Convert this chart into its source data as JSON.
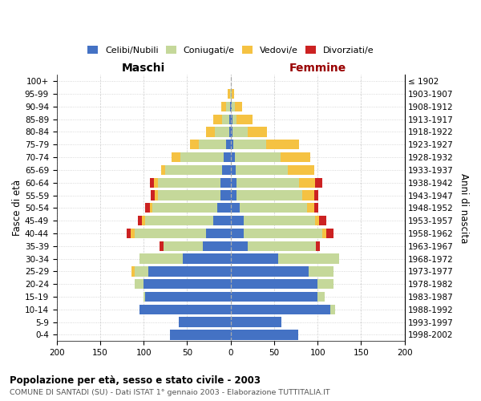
{
  "age_groups": [
    "0-4",
    "5-9",
    "10-14",
    "15-19",
    "20-24",
    "25-29",
    "30-34",
    "35-39",
    "40-44",
    "45-49",
    "50-54",
    "55-59",
    "60-64",
    "65-69",
    "70-74",
    "75-79",
    "80-84",
    "85-89",
    "90-94",
    "95-99",
    "100+"
  ],
  "birth_years": [
    "1998-2002",
    "1993-1997",
    "1988-1992",
    "1983-1987",
    "1978-1982",
    "1973-1977",
    "1968-1972",
    "1963-1967",
    "1958-1962",
    "1953-1957",
    "1948-1952",
    "1943-1947",
    "1938-1942",
    "1933-1937",
    "1928-1932",
    "1923-1927",
    "1918-1922",
    "1913-1917",
    "1908-1912",
    "1903-1907",
    "≤ 1902"
  ],
  "males_celibi": [
    70,
    60,
    105,
    98,
    100,
    95,
    55,
    32,
    28,
    20,
    15,
    12,
    12,
    10,
    8,
    5,
    2,
    2,
    1,
    0,
    0
  ],
  "males_coniugati": [
    0,
    0,
    0,
    2,
    10,
    15,
    50,
    45,
    82,
    78,
    75,
    72,
    72,
    65,
    50,
    32,
    16,
    8,
    4,
    1,
    0
  ],
  "males_vedovi": [
    0,
    0,
    0,
    0,
    0,
    4,
    0,
    0,
    5,
    4,
    3,
    3,
    4,
    5,
    10,
    10,
    10,
    10,
    6,
    2,
    0
  ],
  "males_divorziati": [
    0,
    0,
    0,
    0,
    0,
    0,
    0,
    5,
    5,
    5,
    5,
    5,
    5,
    0,
    0,
    0,
    0,
    0,
    0,
    0,
    0
  ],
  "females_nubili": [
    78,
    58,
    115,
    100,
    100,
    90,
    55,
    20,
    15,
    15,
    10,
    7,
    7,
    6,
    5,
    3,
    2,
    2,
    1,
    0,
    0
  ],
  "females_coniugate": [
    0,
    0,
    5,
    8,
    18,
    28,
    70,
    78,
    90,
    82,
    78,
    75,
    72,
    60,
    52,
    38,
    18,
    5,
    4,
    1,
    0
  ],
  "females_vedove": [
    0,
    0,
    0,
    0,
    0,
    0,
    0,
    0,
    5,
    5,
    8,
    14,
    18,
    30,
    35,
    38,
    22,
    18,
    8,
    3,
    0
  ],
  "females_divorziate": [
    0,
    0,
    0,
    0,
    0,
    0,
    0,
    5,
    8,
    8,
    5,
    5,
    8,
    0,
    0,
    0,
    0,
    0,
    0,
    0,
    0
  ],
  "color_celibi": "#4472C4",
  "color_coniugati": "#C5D89A",
  "color_vedovi": "#F5C242",
  "color_divorziati": "#CC2222",
  "title": "Popolazione per età, sesso e stato civile - 2003",
  "subtitle": "COMUNE DI SANTADI (SU) - Dati ISTAT 1° gennaio 2003 - Elaborazione TUTTITALIA.IT",
  "legend_labels": [
    "Celibi/Nubili",
    "Coniugati/e",
    "Vedovi/e",
    "Divorziati/e"
  ],
  "xlim": 200,
  "maschi_label": "Maschi",
  "femmine_label": "Femmine",
  "ylabel_left": "Fasce di età",
  "ylabel_right": "Anni di nascita",
  "background_color": "#ffffff",
  "grid_color": "#cccccc"
}
